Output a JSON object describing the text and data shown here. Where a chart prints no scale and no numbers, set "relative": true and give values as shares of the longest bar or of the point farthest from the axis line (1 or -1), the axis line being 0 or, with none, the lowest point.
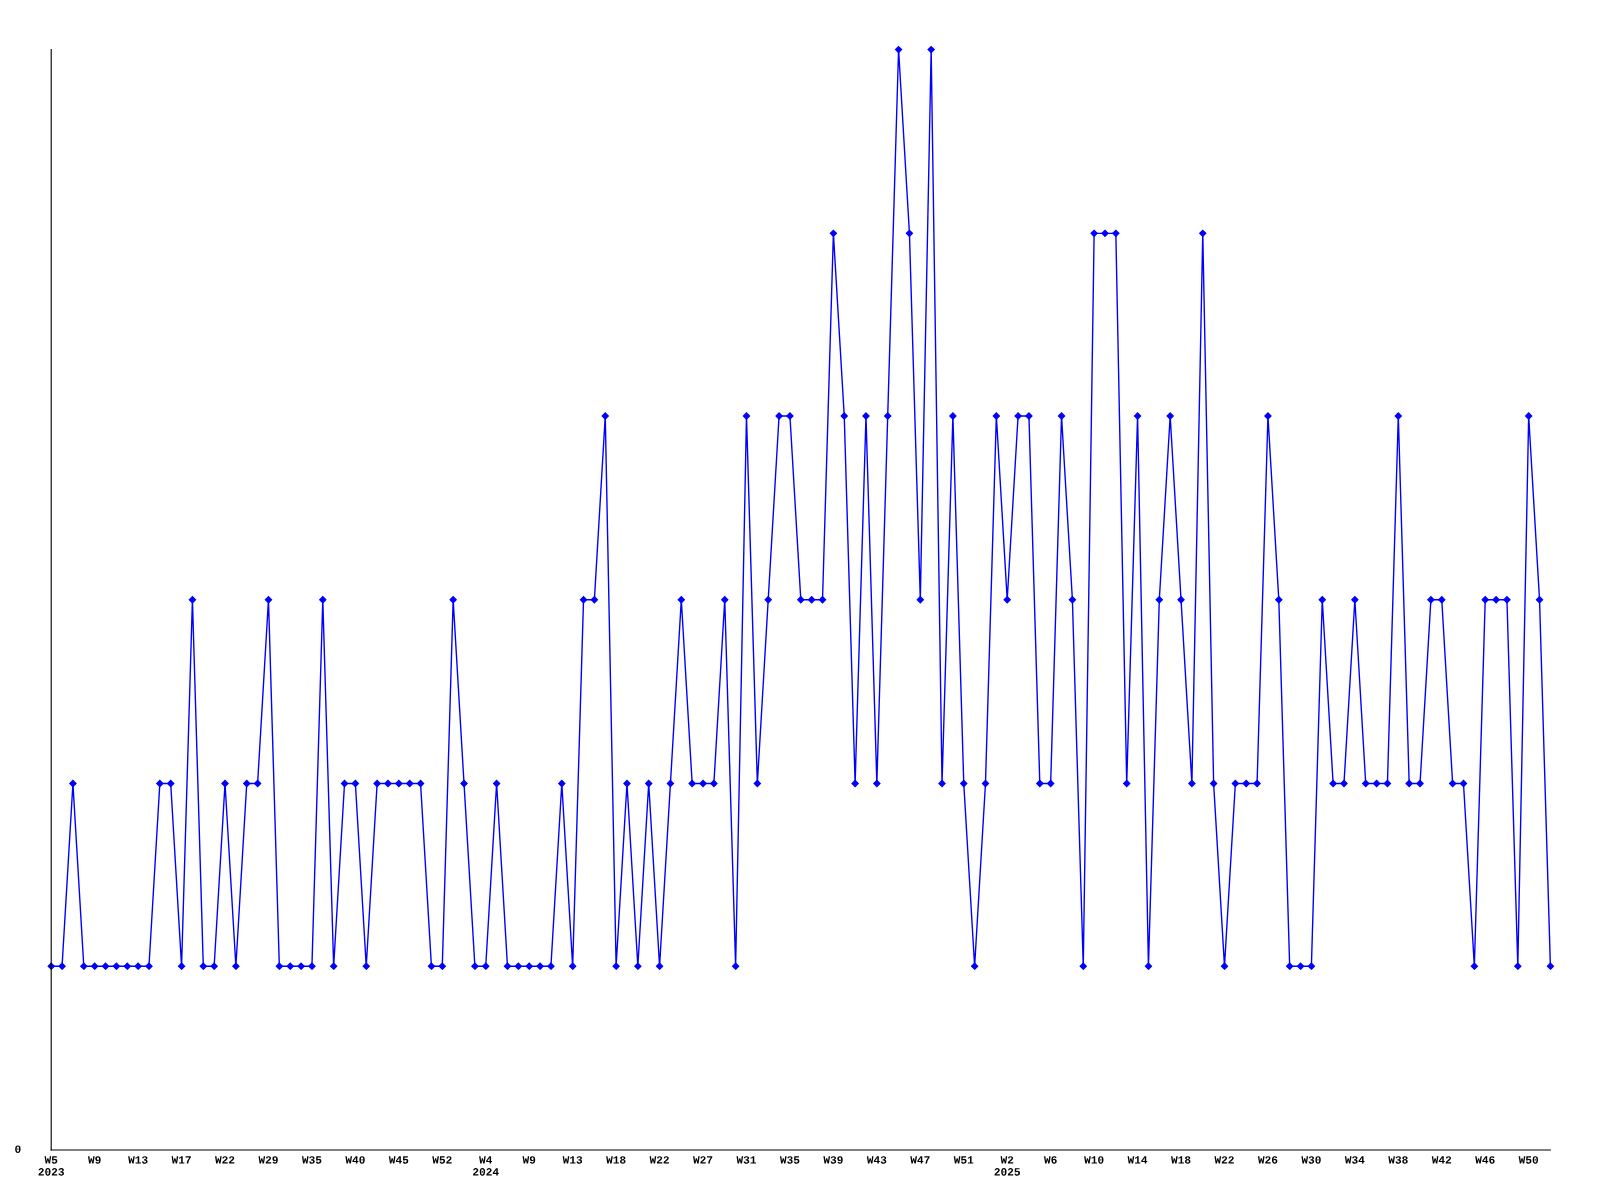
{
  "chart_data": {
    "type": "line",
    "relative": true,
    "marker": "diamond",
    "line_style": "solid",
    "grid": false,
    "legend": false,
    "annotations": [
      "0"
    ],
    "categories": [
      "W5\n2023",
      null,
      null,
      null,
      "W9",
      null,
      null,
      null,
      "W13",
      null,
      null,
      null,
      "W17",
      null,
      null,
      null,
      "W22",
      null,
      null,
      null,
      "W29",
      null,
      null,
      null,
      "W35",
      null,
      null,
      null,
      "W40",
      null,
      null,
      null,
      "W45",
      null,
      null,
      null,
      "W52",
      null,
      null,
      null,
      "W4\n2024",
      null,
      null,
      null,
      "W9",
      null,
      null,
      null,
      "W13",
      null,
      null,
      null,
      "W18",
      null,
      null,
      null,
      "W22",
      null,
      null,
      null,
      "W27",
      null,
      null,
      null,
      "W31",
      null,
      null,
      null,
      "W35",
      null,
      null,
      null,
      "W39",
      null,
      null,
      null,
      "W43",
      null,
      null,
      null,
      "W47",
      null,
      null,
      null,
      "W51",
      null,
      null,
      null,
      "W2\n2025",
      null,
      null,
      null,
      "W6",
      null,
      null,
      null,
      "W10",
      null,
      null,
      null,
      "W14",
      null,
      null,
      null,
      "W18",
      null,
      null,
      null,
      "W22",
      null,
      null,
      null,
      "W26",
      null,
      null,
      null,
      "W30",
      null,
      null,
      null,
      "W34",
      null,
      null,
      null,
      "W38",
      null,
      null,
      null,
      "W42",
      null,
      null,
      null,
      "W46",
      null,
      null,
      null,
      "W50",
      null,
      null
    ],
    "series": [
      {
        "color": "#0000ff",
        "values": [
          0.167,
          0.167,
          0.333,
          0.167,
          0.167,
          0.167,
          0.167,
          0.167,
          0.167,
          0.167,
          0.333,
          0.333,
          0.167,
          0.5,
          0.167,
          0.167,
          0.333,
          0.167,
          0.333,
          0.333,
          0.5,
          0.167,
          0.167,
          0.167,
          0.167,
          0.5,
          0.167,
          0.333,
          0.333,
          0.167,
          0.333,
          0.333,
          0.333,
          0.333,
          0.333,
          0.167,
          0.167,
          0.5,
          0.333,
          0.167,
          0.167,
          0.333,
          0.167,
          0.167,
          0.167,
          0.167,
          0.167,
          0.333,
          0.167,
          0.5,
          0.5,
          0.667,
          0.167,
          0.333,
          0.167,
          0.333,
          0.167,
          0.333,
          0.5,
          0.333,
          0.333,
          0.333,
          0.5,
          0.167,
          0.667,
          0.333,
          0.5,
          0.667,
          0.667,
          0.5,
          0.5,
          0.5,
          0.833,
          0.667,
          0.333,
          0.667,
          0.333,
          0.667,
          1,
          0.833,
          0.5,
          1,
          0.333,
          0.667,
          0.333,
          0.167,
          0.333,
          0.667,
          0.5,
          0.667,
          0.667,
          0.333,
          0.333,
          0.667,
          0.5,
          0.167,
          0.833,
          0.833,
          0.833,
          0.333,
          0.667,
          0.167,
          0.5,
          0.667,
          0.5,
          0.333,
          0.833,
          0.333,
          0.167,
          0.333,
          0.333,
          0.333,
          0.667,
          0.5,
          0.167,
          0.167,
          0.167,
          0.5,
          0.333,
          0.333,
          0.5,
          0.333,
          0.333,
          0.333,
          0.667,
          0.333,
          0.333,
          0.5,
          0.5,
          0.333,
          0.333,
          0.167,
          0.5,
          0.5,
          0.5,
          0.167,
          0.667,
          0.5,
          0.167
        ]
      }
    ]
  }
}
